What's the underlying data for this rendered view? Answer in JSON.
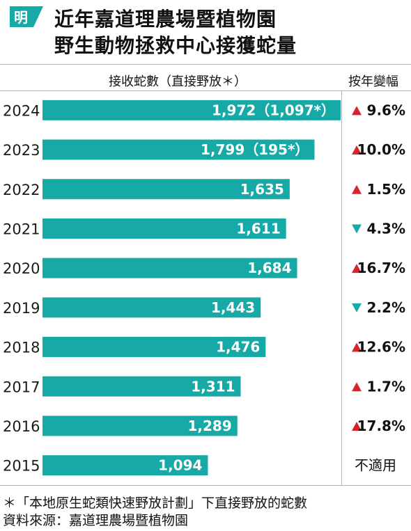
{
  "header": {
    "logo_glyph": "明",
    "logo_color": "#16a9a6",
    "title_line1": "近年嘉道理農場暨植物園",
    "title_line2": "野生動物拯救中心接獲蛇量"
  },
  "columns": {
    "received": "接收蛇數（直接野放＊）",
    "change": "按年變幅"
  },
  "chart_data": {
    "type": "bar",
    "orientation": "horizontal",
    "categories": [
      "2024",
      "2023",
      "2022",
      "2021",
      "2020",
      "2019",
      "2018",
      "2017",
      "2016",
      "2015"
    ],
    "values": [
      1972,
      1799,
      1635,
      1611,
      1684,
      1443,
      1476,
      1311,
      1289,
      1094
    ],
    "value_labels": [
      "1,972（1,097*）",
      "1,799（195*）",
      "1,635",
      "1,611",
      "1,684",
      "1,443",
      "1,476",
      "1,311",
      "1,289",
      "1,094"
    ],
    "direct_release": [
      1097,
      195,
      null,
      null,
      null,
      null,
      null,
      null,
      null,
      null
    ],
    "changes": [
      {
        "direction": "up",
        "text": "9.6%"
      },
      {
        "direction": "up",
        "text": "10.0%"
      },
      {
        "direction": "up",
        "text": "1.5%"
      },
      {
        "direction": "down",
        "text": "4.3%"
      },
      {
        "direction": "up",
        "text": "16.7%"
      },
      {
        "direction": "down",
        "text": "2.2%"
      },
      {
        "direction": "up",
        "text": "12.6%"
      },
      {
        "direction": "up",
        "text": "1.7%"
      },
      {
        "direction": "up",
        "text": "17.8%"
      },
      {
        "direction": "none",
        "text": "不適用"
      }
    ],
    "xlim": [
      0,
      1972
    ],
    "bar_color": "#16a9a6",
    "up_color": "#d6242f",
    "down_color": "#16a9a6",
    "grid": false
  },
  "footnotes": {
    "note": "＊「本地原生蛇類快速野放計劃」下直接野放的蛇數",
    "source": "資料來源：嘉道理農場暨植物園"
  }
}
